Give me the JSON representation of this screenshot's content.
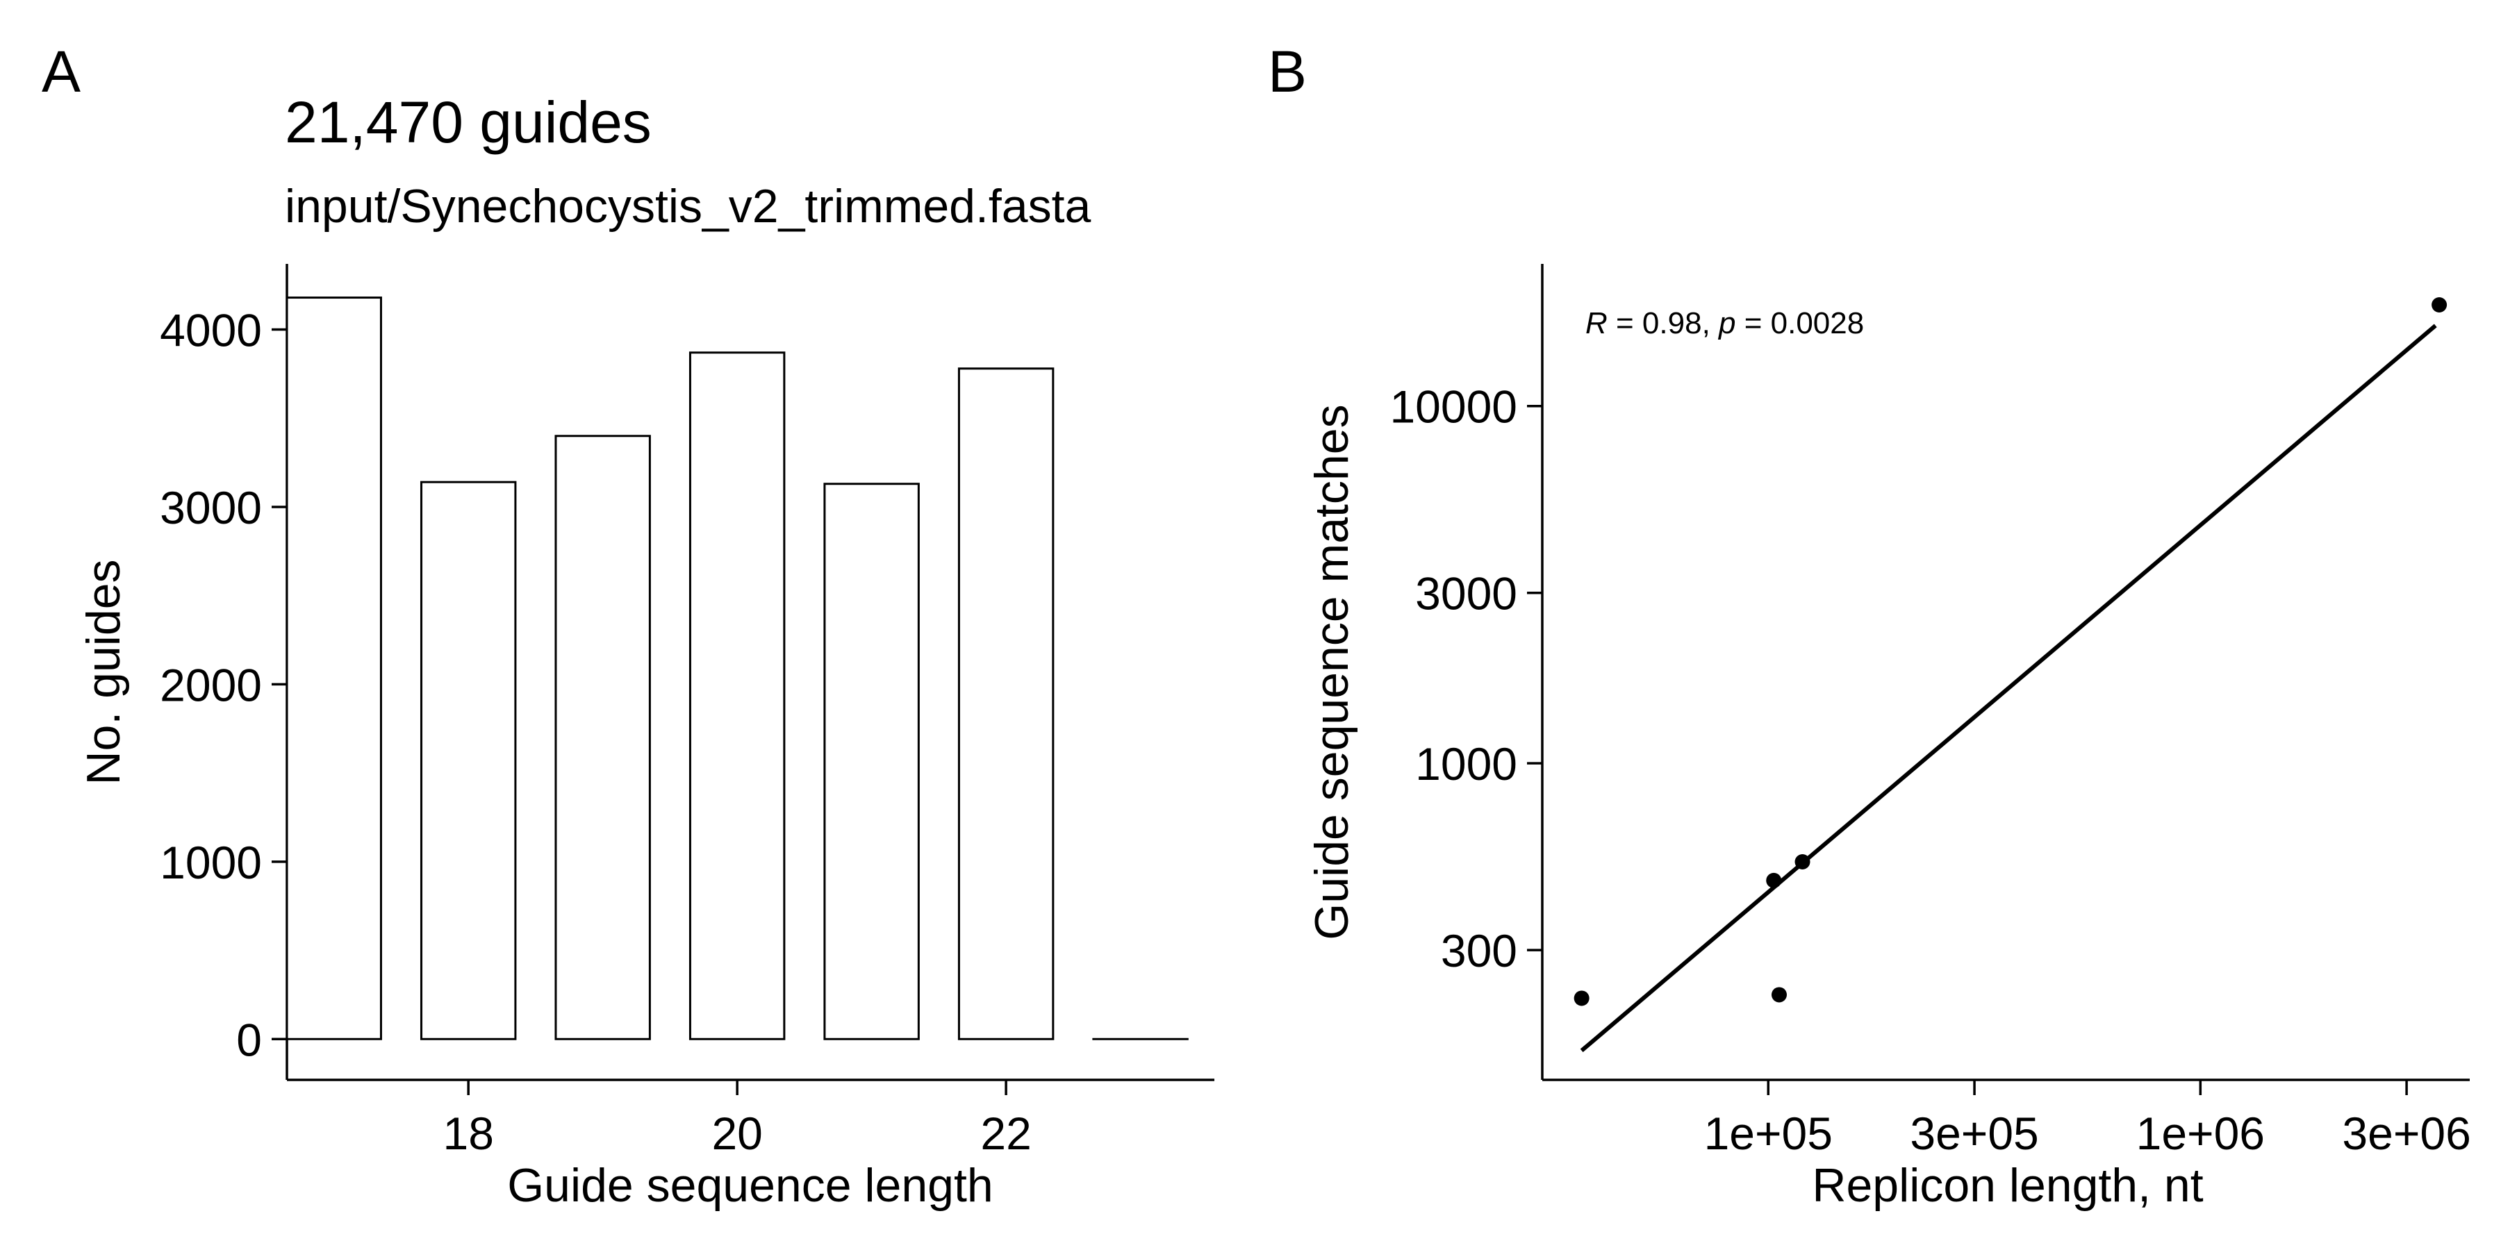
{
  "chart_data": [
    {
      "panel_label": "A",
      "type": "bar",
      "title": "21,470 guides",
      "subtitle": "input/Synechocystis_v2_trimmed.fasta",
      "xlabel": "Guide sequence length",
      "ylabel": "No. guides",
      "categories": [
        17,
        18,
        19,
        20,
        21,
        22,
        23
      ],
      "values": [
        4180,
        3140,
        3400,
        3870,
        3130,
        3780,
        0
      ],
      "xticks": [
        18,
        20,
        22
      ],
      "yticks": [
        0,
        1000,
        2000,
        3000,
        4000
      ],
      "xlim": [
        16.65,
        23.55
      ],
      "ylim": [
        -230,
        4370
      ],
      "grid": false,
      "bar_fill": "#ffffff",
      "bar_stroke": "#000000"
    },
    {
      "panel_label": "B",
      "type": "scatter",
      "xlabel": "Replicon length, nt",
      "ylabel": "Guide sequence matches",
      "x_scale": "log",
      "y_scale": "log",
      "annotation": {
        "r_symbol": "R",
        "r_rest": " = 0.98, ",
        "p_symbol": "p",
        "p_rest": " = 0.0028"
      },
      "points": [
        {
          "x": 37000,
          "y": 220
        },
        {
          "x": 103000,
          "y": 470
        },
        {
          "x": 106000,
          "y": 225
        },
        {
          "x": 120000,
          "y": 530
        },
        {
          "x": 3570000,
          "y": 19200
        }
      ],
      "fit_line": {
        "x": [
          37000,
          3500000
        ],
        "y": [
          157,
          16800
        ]
      },
      "xticks": [
        {
          "value": 100000,
          "label": "1e+05"
        },
        {
          "value": 300000,
          "label": "3e+05"
        },
        {
          "value": 1000000,
          "label": "1e+06"
        },
        {
          "value": 3000000,
          "label": "3e+06"
        }
      ],
      "yticks": [
        {
          "value": 300,
          "label": "300"
        },
        {
          "value": 1000,
          "label": "1000"
        },
        {
          "value": 3000,
          "label": "3000"
        },
        {
          "value": 10000,
          "label": "10000"
        }
      ],
      "xlim": [
        30000,
        4200000
      ],
      "ylim": [
        130,
        25000
      ],
      "grid": false,
      "point_color": "#000000",
      "line_color": "#000000"
    }
  ]
}
